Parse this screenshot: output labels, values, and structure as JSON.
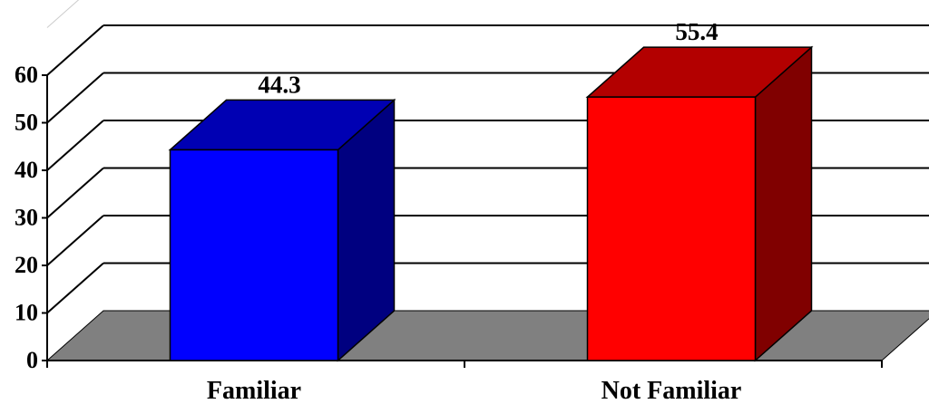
{
  "chart_data": {
    "type": "bar",
    "style": "3d",
    "title": "",
    "xlabel": "",
    "ylabel": "",
    "categories": [
      "Familiar",
      "Not Familiar"
    ],
    "values": [
      44.3,
      55.4
    ],
    "data_labels": [
      "44.3",
      "55.4"
    ],
    "colors": {
      "Familiar": {
        "front": "#0000ff",
        "top": "#0000b3",
        "side": "#000080"
      },
      "Not Familiar": {
        "front": "#ff0000",
        "top": "#b30000",
        "side": "#800000"
      }
    },
    "floor_color": "#808080",
    "grid": true,
    "ylim": [
      0,
      60
    ],
    "yticks": [
      0,
      10,
      20,
      30,
      40,
      50,
      60
    ],
    "legend": "none"
  }
}
